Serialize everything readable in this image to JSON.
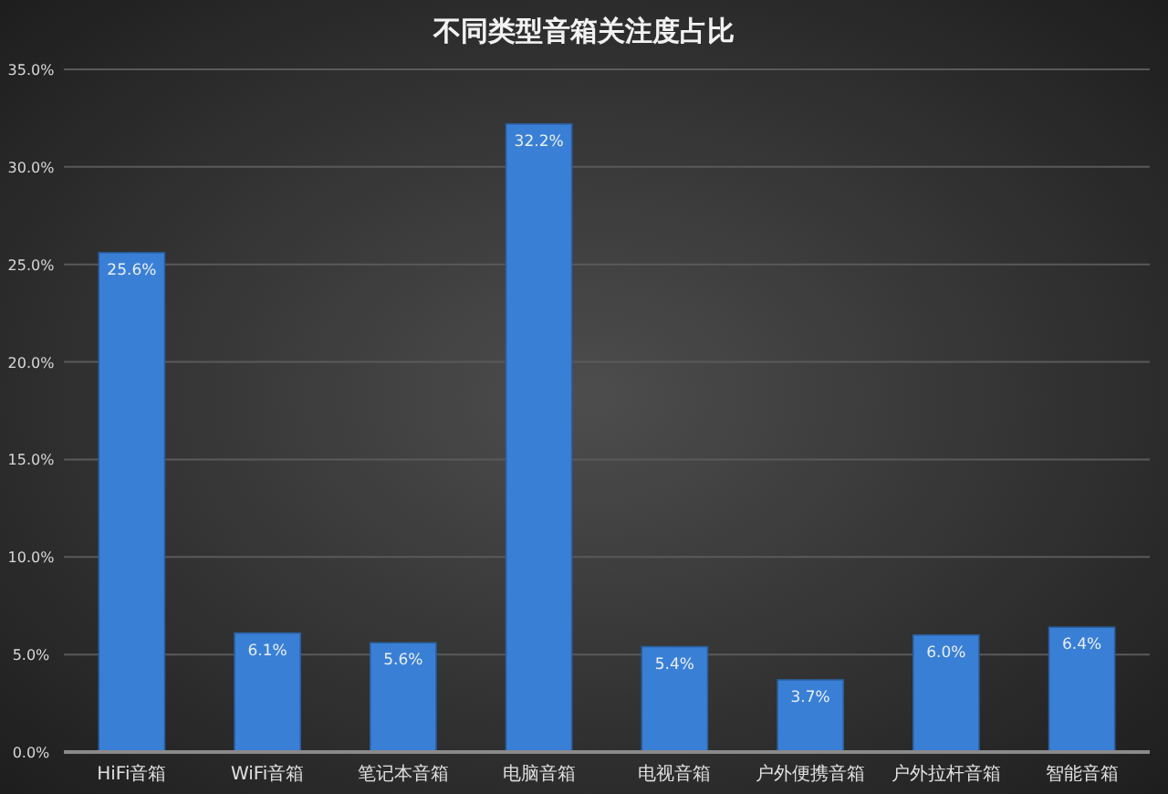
{
  "chart_data": {
    "type": "bar",
    "title": "不同类型音箱关注度占比",
    "categories": [
      "HiFi音箱",
      "WiFi音箱",
      "笔记本音箱",
      "电脑音箱",
      "电视音箱",
      "户外便携音箱",
      "户外拉杆音箱",
      "智能音箱"
    ],
    "values": [
      25.6,
      6.1,
      5.6,
      32.2,
      5.4,
      3.7,
      6.0,
      6.4
    ],
    "value_labels": [
      "25.6%",
      "6.1%",
      "5.6%",
      "32.2%",
      "5.4%",
      "3.7%",
      "6.0%",
      "6.4%"
    ],
    "color": "#3a7fd6",
    "ylim": [
      0,
      35
    ],
    "yticks": [
      {
        "value": 0,
        "label": "0.0%"
      },
      {
        "value": 5,
        "label": "5.0%"
      },
      {
        "value": 10,
        "label": "10.0%"
      },
      {
        "value": 15,
        "label": "15.0%"
      },
      {
        "value": 20,
        "label": "20.0%"
      },
      {
        "value": 25,
        "label": "25.0%"
      },
      {
        "value": 30,
        "label": "30.0%"
      },
      {
        "value": 35,
        "label": "35.0%"
      }
    ],
    "grid": "y"
  }
}
